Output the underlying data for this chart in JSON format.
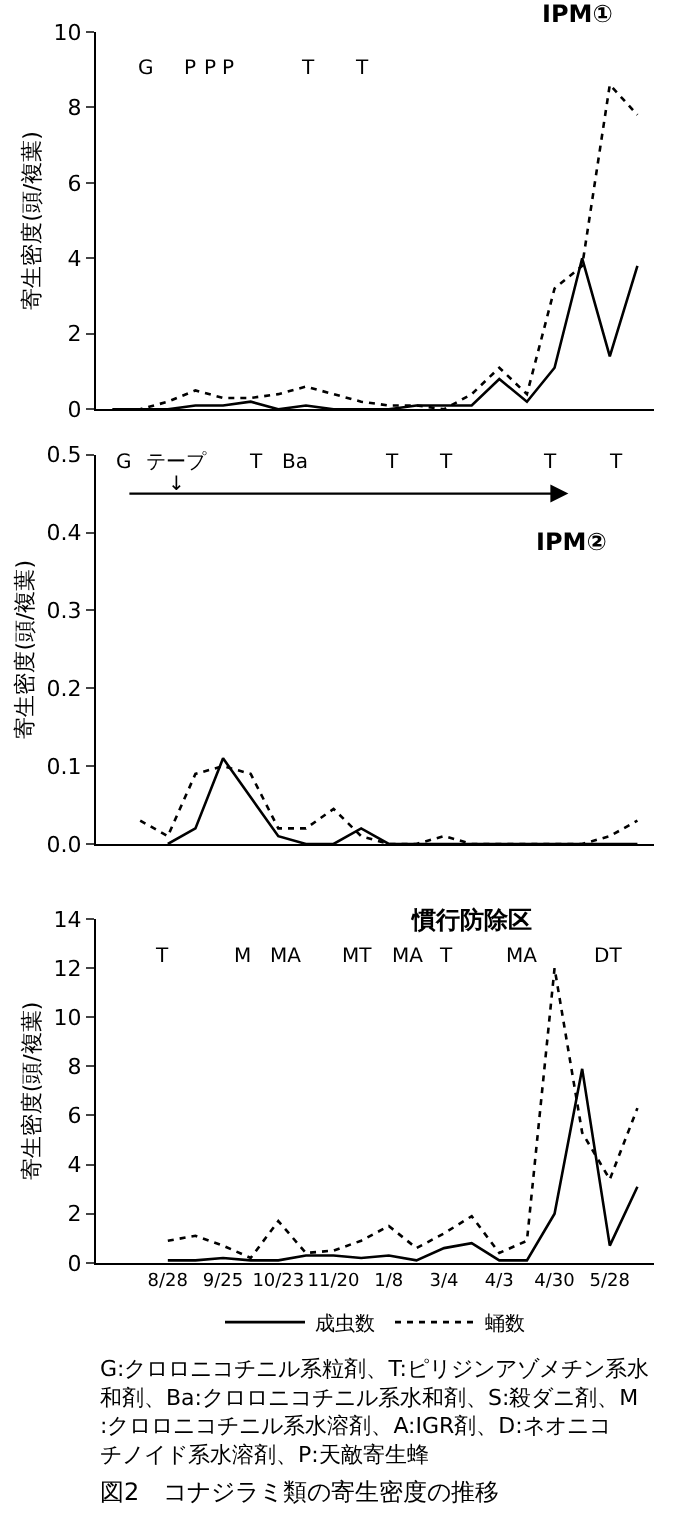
{
  "chart_data": [
    {
      "type": "line",
      "title": "IPM①",
      "ylabel": "寄生密度(頭/複葉)",
      "categories": [
        null,
        null,
        null,
        null,
        null,
        null,
        null,
        null,
        null,
        null,
        null,
        null,
        null,
        null,
        null,
        null,
        null,
        null,
        null,
        null
      ],
      "series": [
        {
          "color": "#000000",
          "line_style": "solid",
          "values": [
            0,
            0,
            0,
            0.1,
            0.1,
            0.2,
            0,
            0.1,
            0,
            0,
            0,
            0.1,
            0.1,
            0.1,
            0.8,
            0.2,
            1.1,
            4.0,
            1.4,
            3.8
          ]
        },
        {
          "color": "#000000",
          "line_style": "dotted",
          "values": [
            0,
            0,
            0.2,
            0.5,
            0.3,
            0.3,
            0.4,
            0.6,
            0.4,
            0.2,
            0.1,
            0.1,
            0,
            0.4,
            1.1,
            0.4,
            3.2,
            3.8,
            8.6,
            7.8
          ]
        }
      ],
      "ylim": [
        0,
        10
      ],
      "yticks": [
        0,
        2,
        4,
        6,
        8,
        10
      ],
      "grid": false,
      "marker": "none",
      "tick_labels": "y",
      "annotations": [
        "G",
        "P",
        "P",
        "P",
        "T",
        "T"
      ]
    },
    {
      "type": "line",
      "title": "IPM②",
      "ylabel": "寄生密度(頭/複葉)",
      "categories": [
        null,
        null,
        null,
        null,
        null,
        null,
        null,
        null,
        null,
        null,
        null,
        null,
        null,
        null,
        null,
        null,
        null,
        null,
        null,
        null
      ],
      "series": [
        {
          "color": "#000000",
          "line_style": "solid",
          "values": [
            null,
            null,
            0,
            0.02,
            0.11,
            0.06,
            0.01,
            0,
            0,
            0.02,
            0,
            0,
            0,
            0,
            0,
            0,
            0,
            0,
            0,
            0
          ]
        },
        {
          "color": "#000000",
          "line_style": "dotted",
          "values": [
            null,
            0.03,
            0.01,
            0.09,
            0.1,
            0.09,
            0.02,
            0.02,
            0.045,
            0.01,
            0,
            0,
            0.01,
            0,
            0,
            0,
            0,
            0,
            0.01,
            0.03
          ]
        }
      ],
      "ylim": [
        0,
        0.5
      ],
      "yticks": [
        {
          "value": 0,
          "label": "0.0"
        },
        0.1,
        0.2,
        0.3,
        0.4,
        0.5
      ],
      "grid": false,
      "marker": "none",
      "tick_labels": "y",
      "annotations": [
        "G",
        "テープ",
        "↓",
        "T",
        "Ba",
        "T",
        "T",
        "T",
        "T"
      ]
    },
    {
      "type": "line",
      "title": "慣行防除区",
      "ylabel": "寄生密度(頭/複葉)",
      "categories": [
        null,
        null,
        "8/28",
        null,
        "9/25",
        null,
        "10/23",
        null,
        "11/20",
        null,
        "1/8",
        null,
        "3/4",
        null,
        "4/3",
        null,
        "4/30",
        null,
        "5/28",
        null
      ],
      "series": [
        {
          "name": "成虫数",
          "color": "#000000",
          "line_style": "solid",
          "values": [
            null,
            null,
            0.1,
            0.1,
            0.2,
            0.1,
            0.1,
            0.3,
            0.3,
            0.2,
            0.3,
            0.1,
            0.6,
            0.8,
            0.1,
            0.1,
            2.0,
            7.9,
            0.7,
            3.1
          ]
        },
        {
          "name": "蛹数",
          "color": "#000000",
          "line_style": "dotted",
          "values": [
            null,
            null,
            0.9,
            1.1,
            0.7,
            0.2,
            1.7,
            0.4,
            0.5,
            0.9,
            1.5,
            0.6,
            1.2,
            1.9,
            0.4,
            0.9,
            12,
            5.3,
            3.4,
            6.3
          ]
        }
      ],
      "ylim": [
        0,
        14
      ],
      "yticks": [
        0,
        2,
        4,
        6,
        8,
        10,
        12,
        14
      ],
      "grid": false,
      "marker": "none",
      "legend": "bottom",
      "annotations": [
        "T",
        "M",
        "MA",
        "MT",
        "MA",
        "T",
        "MA",
        "DT",
        "G:クロロニコチニル系粒剤、T:ピリジンアゾメチン系水和剤、Ba:クロロニコチニル系水和剤、S:殺ダニ剤、M:クロロニコチニル系水溶剤、A:IGR剤、D:ネオニコチノイド系水溶剤、P:天敵寄生蜂",
        "図2　コナジラミ類の寄生密度の推移"
      ]
    }
  ]
}
